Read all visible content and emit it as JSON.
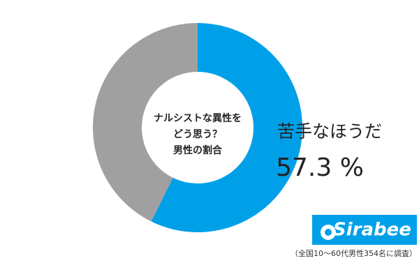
{
  "chart_data": {
    "type": "donut",
    "title": [
      "ナルシストな異性を",
      "どう思う？",
      "男性の割合"
    ],
    "categories": [
      "苦手なほうだ",
      null
    ],
    "values": [
      57.3,
      42.7
    ],
    "value_labels": [
      "57.3 %",
      null
    ],
    "colors": [
      "#00a0e9",
      "#a0a0a0"
    ],
    "logo": "Sirabee",
    "note": "（全国10～60代男性354名に調査）"
  }
}
